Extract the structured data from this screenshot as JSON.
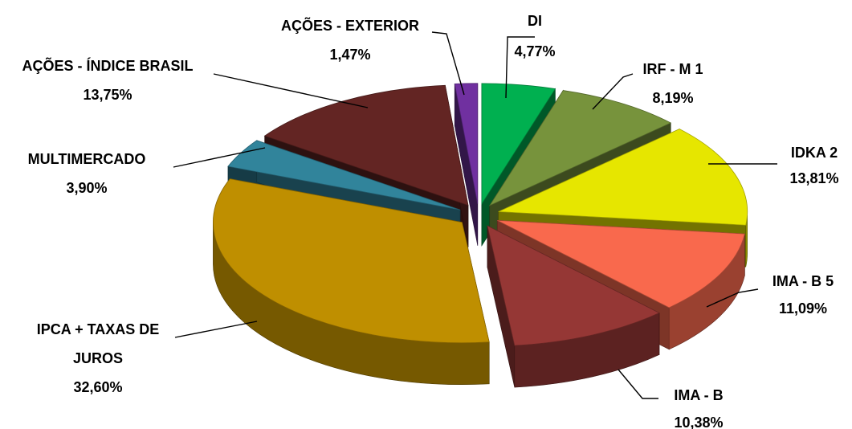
{
  "chart_data": {
    "type": "pie",
    "style": "3d-exploded",
    "slices": [
      {
        "label": "DI",
        "value": 4.77,
        "text": "4,77%",
        "color": "#00b050"
      },
      {
        "label": "IRF - M 1",
        "value": 8.19,
        "text": "8,19%",
        "color": "#77933c"
      },
      {
        "label": "IDKA 2",
        "value": 13.81,
        "text": "13,81%",
        "color": "#e6e600"
      },
      {
        "label": "IMA - B 5",
        "value": 11.09,
        "text": "11,09%",
        "color": "#f9694d"
      },
      {
        "label": "IMA - B",
        "value": 10.38,
        "text": "10,38%",
        "color": "#953735"
      },
      {
        "label": "IPCA + TAXAS DE JUROS",
        "value": 32.6,
        "text": "32,60%",
        "color": "#bf8f00"
      },
      {
        "label": "MULTIMERCADO",
        "value": 3.9,
        "text": "3,90%",
        "color": "#31849b"
      },
      {
        "label": "AÇÕES - ÍNDICE BRASIL",
        "value": 13.75,
        "text": "13,75%",
        "color": "#632523"
      },
      {
        "label": "AÇÕES - EXTERIOR",
        "value": 1.47,
        "text": "1,47%",
        "color": "#7030a0"
      }
    ],
    "legend": "none"
  }
}
